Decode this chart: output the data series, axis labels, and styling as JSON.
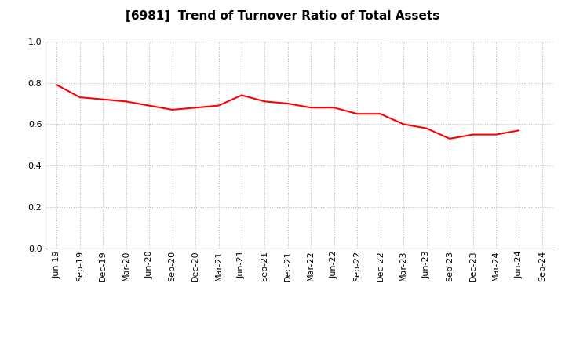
{
  "title": "[6981]  Trend of Turnover Ratio of Total Assets",
  "x_labels": [
    "Jun-19",
    "Sep-19",
    "Dec-19",
    "Mar-20",
    "Jun-20",
    "Sep-20",
    "Dec-20",
    "Mar-21",
    "Jun-21",
    "Sep-21",
    "Dec-21",
    "Mar-22",
    "Jun-22",
    "Sep-22",
    "Dec-22",
    "Mar-23",
    "Jun-23",
    "Sep-23",
    "Dec-23",
    "Mar-24",
    "Jun-24",
    "Sep-24"
  ],
  "values": [
    0.79,
    0.73,
    0.72,
    0.71,
    0.69,
    0.67,
    0.68,
    0.69,
    0.74,
    0.71,
    0.7,
    0.68,
    0.68,
    0.65,
    0.65,
    0.6,
    0.58,
    0.53,
    0.55,
    0.55,
    0.57,
    null
  ],
  "line_color": "#FF0000",
  "background_color": "#FFFFFF",
  "plot_bg_color": "#FFFFFF",
  "ylim": [
    0.0,
    1.0
  ],
  "yticks": [
    0.0,
    0.2,
    0.4,
    0.6,
    0.8,
    1.0
  ],
  "grid_color": "#BBBBBB",
  "title_fontsize": 11,
  "tick_fontsize": 8,
  "line_width": 1.5
}
